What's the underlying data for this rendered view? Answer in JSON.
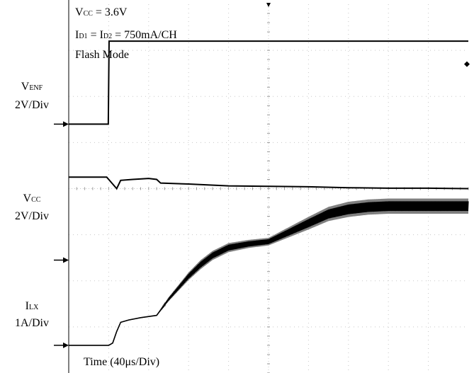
{
  "chart_data": {
    "type": "line",
    "annotations": {
      "vcc_label": {
        "main": "V",
        "sub": "CC",
        "rest": " = 3.6V"
      },
      "current_label": {
        "i1": "I",
        "i1_sub": "D1",
        "mid": " = I",
        "i2_sub": "D2",
        "rest": " = 750mA/CH"
      },
      "mode": "Flash Mode",
      "time_base": "Time (40μs/Div)"
    },
    "channels": [
      {
        "id": "venf",
        "name_main": "V",
        "name_sub": "ENF",
        "scale": "2V/Div"
      },
      {
        "id": "vcc",
        "name_main": "V",
        "name_sub": "CC",
        "scale": "2V/Div"
      },
      {
        "id": "ilx",
        "name_main": "I",
        "name_sub": "LX",
        "scale": "1A/Div"
      }
    ],
    "grid": {
      "divisions_x": 10,
      "divisions_y": 8,
      "grid": true
    },
    "xlim": [
      0,
      10
    ],
    "ylim": [
      0,
      8
    ],
    "series": [
      {
        "id": "venf",
        "x": [
          0,
          0.99,
          1.01,
          10
        ],
        "y": [
          5.4,
          5.4,
          7.2,
          7.2
        ]
      },
      {
        "id": "vcc",
        "x": [
          0,
          0.95,
          1.1,
          1.2,
          1.3,
          1.6,
          2.0,
          2.2,
          2.3,
          3.0,
          4.0,
          5.0,
          6.0,
          7.0,
          8.0,
          9.0,
          10.0
        ],
        "y": [
          4.25,
          4.25,
          4.1,
          4.0,
          4.18,
          4.2,
          4.22,
          4.2,
          4.12,
          4.1,
          4.06,
          4.05,
          4.04,
          4.02,
          4.01,
          4.01,
          4.0
        ]
      },
      {
        "id": "ilx",
        "x": [
          0,
          1.0,
          1.1,
          1.2,
          1.3,
          1.5,
          1.8,
          2.2,
          2.5,
          3.0,
          3.3,
          3.6,
          4.0,
          4.5,
          5.0,
          5.5,
          6.0,
          6.5,
          7.0,
          7.5,
          8.0,
          8.5,
          9.0,
          10.0
        ],
        "y": [
          0.6,
          0.6,
          0.65,
          0.9,
          1.1,
          1.15,
          1.2,
          1.25,
          1.6,
          2.1,
          2.35,
          2.55,
          2.72,
          2.8,
          2.85,
          3.05,
          3.25,
          3.45,
          3.55,
          3.6,
          3.62,
          3.62,
          3.62,
          3.62
        ],
        "ripple": [
          0,
          0,
          0,
          0,
          0,
          0,
          0,
          0,
          0.08,
          0.15,
          0.18,
          0.18,
          0.18,
          0.16,
          0.15,
          0.2,
          0.25,
          0.28,
          0.3,
          0.3,
          0.3,
          0.3,
          0.3,
          0.3
        ]
      }
    ],
    "colors": {
      "trace": "#000000",
      "envelope": "#808080",
      "grid": "#c8c8c8",
      "frame": "#000000"
    }
  }
}
